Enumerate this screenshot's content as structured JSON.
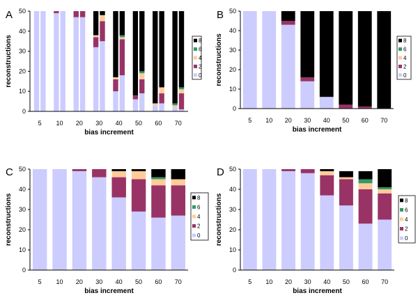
{
  "colors": {
    "0": "#ccccff",
    "2": "#993366",
    "4": "#ffcc99",
    "6": "#339966",
    "8": "#000000"
  },
  "chart_data": [
    {
      "type": "bar",
      "stacked": true,
      "panel_label": "A",
      "xlabel": "bias increment",
      "ylabel": "reconstructions",
      "ylim": [
        0,
        50
      ],
      "yticks": [
        0,
        10,
        20,
        30,
        40,
        50
      ],
      "categories": [
        "5",
        "5",
        "10",
        "10",
        "20",
        "20",
        "30",
        "30",
        "40",
        "40",
        "50",
        "50",
        "60",
        "60",
        "70",
        "70"
      ],
      "category_labels": [
        "5",
        "10",
        "20",
        "30",
        "40",
        "50",
        "60",
        "70"
      ],
      "grouped_pairs": true,
      "legend": [
        "8",
        "6",
        "4",
        "2",
        "0"
      ],
      "series": [
        {
          "name": "0",
          "values": [
            50,
            50,
            49,
            50,
            47,
            47,
            32,
            35,
            10,
            18,
            6,
            9,
            3,
            4,
            2,
            1
          ]
        },
        {
          "name": "2",
          "values": [
            0,
            0,
            1,
            0,
            3,
            3,
            5,
            10,
            6,
            18,
            2,
            7,
            0,
            5,
            0,
            8
          ]
        },
        {
          "name": "4",
          "values": [
            0,
            0,
            0,
            0,
            0,
            0,
            1,
            3,
            1,
            1,
            0,
            3,
            1,
            3,
            1,
            2
          ]
        },
        {
          "name": "6",
          "values": [
            0,
            0,
            0,
            0,
            0,
            0,
            0,
            0,
            0,
            1,
            0,
            1,
            0,
            0,
            1,
            1
          ]
        },
        {
          "name": "8",
          "values": [
            0,
            0,
            0,
            0,
            0,
            0,
            12,
            2,
            33,
            12,
            42,
            30,
            46,
            38,
            46,
            38
          ]
        }
      ]
    },
    {
      "type": "bar",
      "stacked": true,
      "panel_label": "B",
      "xlabel": "bias increment",
      "ylabel": "reconstructions",
      "ylim": [
        0,
        50
      ],
      "yticks": [
        0,
        10,
        20,
        30,
        40,
        50
      ],
      "categories": [
        "5",
        "10",
        "20",
        "30",
        "40",
        "50",
        "60",
        "70"
      ],
      "legend": [
        "8",
        "6",
        "4",
        "2",
        "0"
      ],
      "series": [
        {
          "name": "0",
          "values": [
            50,
            50,
            43,
            14,
            6,
            0,
            0,
            0
          ]
        },
        {
          "name": "2",
          "values": [
            0,
            0,
            2,
            2,
            0,
            2,
            1,
            0
          ]
        },
        {
          "name": "4",
          "values": [
            0,
            0,
            0,
            0,
            0,
            0,
            0,
            0
          ]
        },
        {
          "name": "6",
          "values": [
            0,
            0,
            0,
            0,
            0,
            0,
            0,
            0
          ]
        },
        {
          "name": "8",
          "values": [
            0,
            0,
            5,
            34,
            44,
            48,
            49,
            50
          ]
        }
      ]
    },
    {
      "type": "bar",
      "stacked": true,
      "panel_label": "C",
      "xlabel": "bias increment",
      "ylabel": "reconstructions",
      "ylim": [
        0,
        50
      ],
      "yticks": [
        0,
        10,
        20,
        30,
        40,
        50
      ],
      "categories": [
        "5",
        "10",
        "20",
        "30",
        "40",
        "50",
        "60",
        "70"
      ],
      "legend": [
        "8",
        "6",
        "4",
        "2",
        "0"
      ],
      "series": [
        {
          "name": "0",
          "values": [
            50,
            50,
            49,
            46,
            36,
            29,
            26,
            27
          ]
        },
        {
          "name": "2",
          "values": [
            0,
            0,
            1,
            4,
            10,
            16,
            16,
            15
          ]
        },
        {
          "name": "4",
          "values": [
            0,
            0,
            0,
            0,
            3,
            4,
            3,
            3
          ]
        },
        {
          "name": "6",
          "values": [
            0,
            0,
            0,
            0,
            0,
            0,
            1,
            0
          ]
        },
        {
          "name": "8",
          "values": [
            0,
            0,
            0,
            0,
            1,
            1,
            4,
            5
          ]
        }
      ]
    },
    {
      "type": "bar",
      "stacked": true,
      "panel_label": "D",
      "xlabel": "bias increment",
      "ylabel": "reconstructions",
      "ylim": [
        0,
        50
      ],
      "yticks": [
        0,
        10,
        20,
        30,
        40,
        50
      ],
      "categories": [
        "5",
        "10",
        "20",
        "30",
        "40",
        "50",
        "60",
        "70"
      ],
      "legend": [
        "8",
        "6",
        "4",
        "2",
        "0"
      ],
      "series": [
        {
          "name": "0",
          "values": [
            50,
            50,
            49,
            48,
            37,
            32,
            23,
            25
          ]
        },
        {
          "name": "2",
          "values": [
            0,
            0,
            1,
            2,
            10,
            13,
            17,
            13
          ]
        },
        {
          "name": "4",
          "values": [
            0,
            0,
            0,
            0,
            2,
            1,
            3,
            2
          ]
        },
        {
          "name": "6",
          "values": [
            0,
            0,
            0,
            0,
            0,
            0,
            2,
            1
          ]
        },
        {
          "name": "8",
          "values": [
            0,
            0,
            0,
            0,
            1,
            3,
            4,
            9
          ]
        }
      ]
    }
  ]
}
